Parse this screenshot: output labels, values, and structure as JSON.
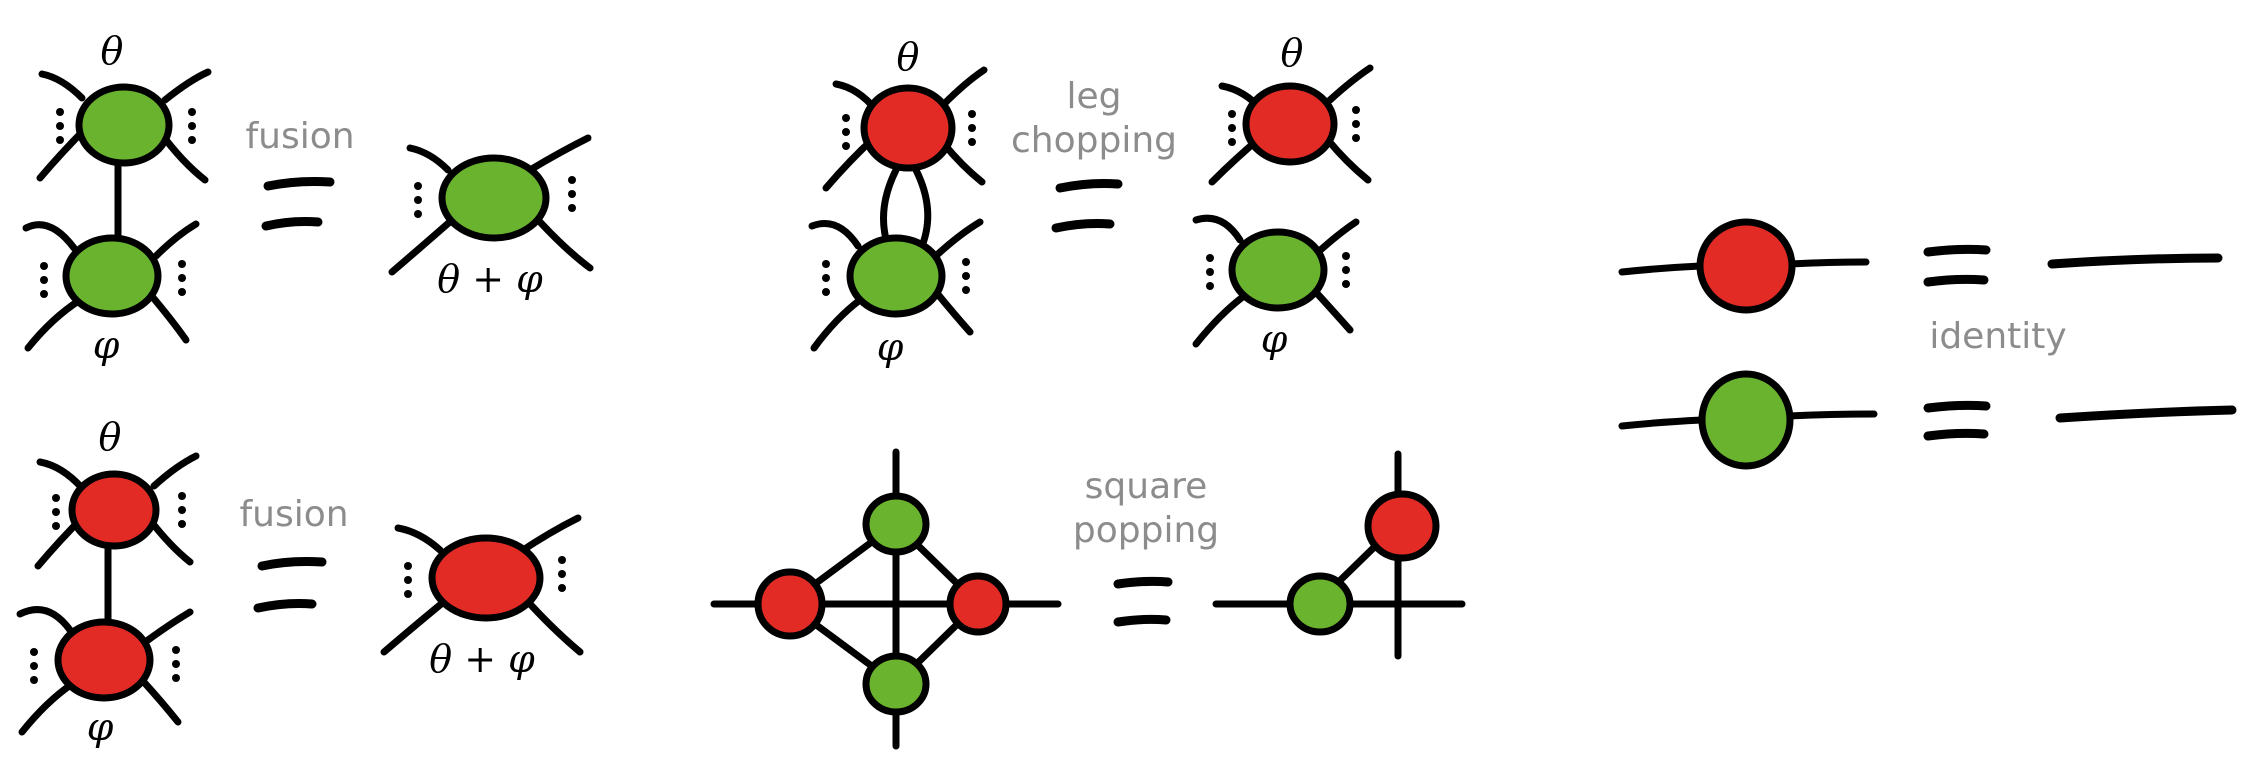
{
  "colors": {
    "green": "#6ab32e",
    "red": "#e32b26",
    "ink": "#000000",
    "label": "#8c8c8c"
  },
  "labels": {
    "fusion_green": "fusion",
    "fusion_red": "fusion",
    "leg_chopping_1": "leg",
    "leg_chopping_2": "chopping",
    "square_popping_1": "square",
    "square_popping_2": "popping",
    "identity": "identity"
  },
  "math": {
    "theta": "θ",
    "phi": "φ",
    "sum": "θ + φ"
  }
}
